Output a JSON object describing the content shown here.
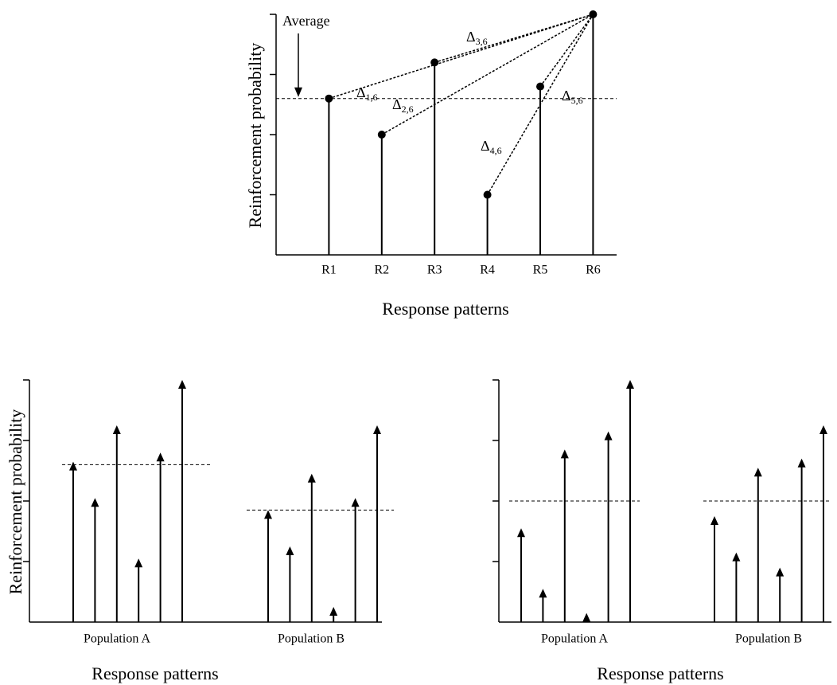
{
  "chart_data": [
    {
      "type": "stem",
      "marker": "circle",
      "color": "#000000",
      "y_label": "Reinforcement probability",
      "x_label": "Response patterns",
      "categories": [
        "R1",
        "R2",
        "R3",
        "R4",
        "R5",
        "R6"
      ],
      "values": [
        2.6,
        2.0,
        3.2,
        1.0,
        2.8,
        4.0
      ],
      "average": 2.6,
      "average_label": "Average",
      "deltas": [
        {
          "symbol": "Δ",
          "subscript": "1,6"
        },
        {
          "symbol": "Δ",
          "subscript": "2,6"
        },
        {
          "symbol": "Δ",
          "subscript": "3,6"
        },
        {
          "symbol": "Δ",
          "subscript": "4,6"
        },
        {
          "symbol": "Δ",
          "subscript": "5,6"
        }
      ],
      "ylim": [
        0,
        4
      ],
      "yticks": [
        1,
        2,
        3,
        4
      ]
    },
    {
      "type": "grouped-stem",
      "marker": "arrow",
      "color": "#000000",
      "y_label": "Reinforcement probability",
      "x_label": "Response patterns",
      "groups": [
        {
          "name": "Population A",
          "values": [
            2.65,
            2.05,
            3.25,
            1.05,
            2.8,
            4.0
          ],
          "average": 2.6
        },
        {
          "name": "Population B",
          "values": [
            1.85,
            1.25,
            2.45,
            0.25,
            2.05,
            3.25
          ],
          "average": 1.85
        }
      ],
      "ylim": [
        0,
        4
      ],
      "yticks": [
        1,
        2,
        3,
        4
      ]
    },
    {
      "type": "grouped-stem",
      "marker": "arrow",
      "color": "#000000",
      "x_label": "Response patterns",
      "groups": [
        {
          "name": "Population A",
          "values": [
            1.55,
            0.55,
            2.85,
            0.15,
            3.15,
            4.0
          ],
          "average": 2.0
        },
        {
          "name": "Population B",
          "values": [
            1.75,
            1.15,
            2.55,
            0.9,
            2.7,
            3.25
          ],
          "average": 2.0
        }
      ],
      "ylim": [
        0,
        4
      ],
      "yticks": [
        1,
        2,
        3,
        4
      ]
    }
  ]
}
